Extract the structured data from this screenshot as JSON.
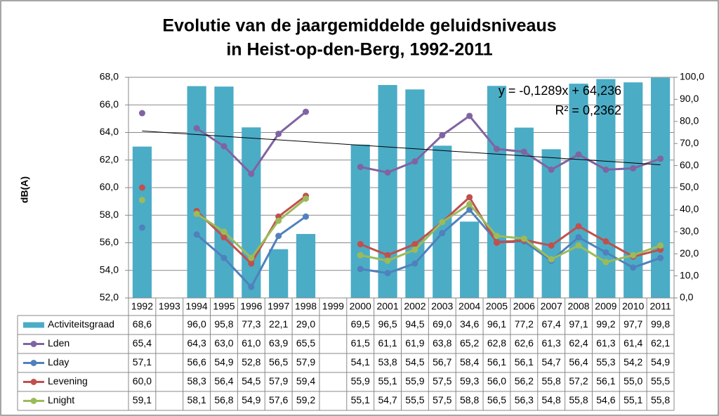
{
  "chart_data": {
    "type": "combo",
    "title": [
      "Evolutie van de jaargemiddelde geluidsniveaus",
      "in Heist-op-den-Berg, 1992-2011"
    ],
    "ylabel": "dB(A)",
    "categories": [
      "1992",
      "1993",
      "1994",
      "1995",
      "1996",
      "1997",
      "1998",
      "1999",
      "2000",
      "2001",
      "2002",
      "2003",
      "2004",
      "2005",
      "2006",
      "2007",
      "2008",
      "2009",
      "2010",
      "2011"
    ],
    "ylim": [
      52,
      68
    ],
    "yticks": [
      {
        "value": 52,
        "label": "52,0"
      },
      {
        "value": 54,
        "label": "54,0"
      },
      {
        "value": 56,
        "label": "56,0"
      },
      {
        "value": 58,
        "label": "58,0"
      },
      {
        "value": 60,
        "label": "60,0"
      },
      {
        "value": 62,
        "label": "62,0"
      },
      {
        "value": 64,
        "label": "64,0"
      },
      {
        "value": 66,
        "label": "66,0"
      },
      {
        "value": 68,
        "label": "68,0"
      }
    ],
    "y2lim": [
      0,
      100
    ],
    "y2ticks": [
      {
        "value": 0,
        "label": "0,0"
      },
      {
        "value": 10,
        "label": "10,0"
      },
      {
        "value": 20,
        "label": "20,0"
      },
      {
        "value": 30,
        "label": "30,0"
      },
      {
        "value": 40,
        "label": "40,0"
      },
      {
        "value": 50,
        "label": "50,0"
      },
      {
        "value": 60,
        "label": "60,0"
      },
      {
        "value": 70,
        "label": "70,0"
      },
      {
        "value": 80,
        "label": "80,0"
      },
      {
        "value": 90,
        "label": "90,0"
      },
      {
        "value": 100,
        "label": "100,0"
      }
    ],
    "grid": true,
    "series": [
      {
        "name": "Activiteitsgraad",
        "type": "bar",
        "axis": "y2",
        "color": "#4bacc6",
        "values": [
          68.6,
          null,
          96.0,
          95.8,
          77.3,
          22.1,
          29.0,
          null,
          69.5,
          96.5,
          94.5,
          69.0,
          34.6,
          96.1,
          77.2,
          67.4,
          97.1,
          99.2,
          97.7,
          99.8
        ],
        "value_labels": [
          "68,6",
          null,
          "96,0",
          "95,8",
          "77,3",
          "22,1",
          "29,0",
          null,
          "69,5",
          "96,5",
          "94,5",
          "69,0",
          "34,6",
          "96,1",
          "77,2",
          "67,4",
          "97,1",
          "99,2",
          "97,7",
          "99,8"
        ]
      },
      {
        "name": "Lden",
        "type": "line",
        "color": "#8064a2",
        "values": [
          65.4,
          null,
          64.3,
          63.0,
          61.0,
          63.9,
          65.5,
          null,
          61.5,
          61.1,
          61.9,
          63.8,
          65.2,
          62.8,
          62.6,
          61.3,
          62.4,
          61.3,
          61.4,
          62.1
        ],
        "value_labels": [
          "65,4",
          null,
          "64,3",
          "63,0",
          "61,0",
          "63,9",
          "65,5",
          null,
          "61,5",
          "61,1",
          "61,9",
          "63,8",
          "65,2",
          "62,8",
          "62,6",
          "61,3",
          "62,4",
          "61,3",
          "61,4",
          "62,1"
        ]
      },
      {
        "name": "Lday",
        "type": "line",
        "color": "#4f81bd",
        "values": [
          57.1,
          null,
          56.6,
          54.9,
          52.8,
          56.5,
          57.9,
          null,
          54.1,
          53.8,
          54.5,
          56.7,
          58.4,
          56.1,
          56.1,
          54.7,
          56.4,
          55.3,
          54.2,
          54.9
        ],
        "value_labels": [
          "57,1",
          null,
          "56,6",
          "54,9",
          "52,8",
          "56,5",
          "57,9",
          null,
          "54,1",
          "53,8",
          "54,5",
          "56,7",
          "58,4",
          "56,1",
          "56,1",
          "54,7",
          "56,4",
          "55,3",
          "54,2",
          "54,9"
        ]
      },
      {
        "name": "Levening",
        "type": "line",
        "color": "#c0504d",
        "values": [
          60.0,
          null,
          58.3,
          56.4,
          54.5,
          57.9,
          59.4,
          null,
          55.9,
          55.1,
          55.9,
          57.5,
          59.3,
          56.0,
          56.2,
          55.8,
          57.2,
          56.1,
          55.0,
          55.5
        ],
        "value_labels": [
          "60,0",
          null,
          "58,3",
          "56,4",
          "54,5",
          "57,9",
          "59,4",
          null,
          "55,9",
          "55,1",
          "55,9",
          "57,5",
          "59,3",
          "56,0",
          "56,2",
          "55,8",
          "57,2",
          "56,1",
          "55,0",
          "55,5"
        ]
      },
      {
        "name": "Lnight",
        "type": "line",
        "color": "#9bbb59",
        "values": [
          59.1,
          null,
          58.1,
          56.8,
          54.9,
          57.6,
          59.2,
          null,
          55.1,
          54.7,
          55.5,
          57.5,
          58.8,
          56.5,
          56.3,
          54.8,
          55.8,
          54.6,
          55.1,
          55.8
        ],
        "value_labels": [
          "59,1",
          null,
          "58,1",
          "56,8",
          "54,9",
          "57,6",
          "59,2",
          null,
          "55,1",
          "54,7",
          "55,5",
          "57,5",
          "58,8",
          "56,5",
          "56,3",
          "54,8",
          "55,8",
          "54,6",
          "55,1",
          "55,8"
        ]
      }
    ],
    "trendline": {
      "label": "y = -0,1289x + 64,236",
      "r2_label": "R² = 0,2362",
      "slope": -0.1289,
      "intercept": 64.236,
      "color": "#000000"
    }
  }
}
